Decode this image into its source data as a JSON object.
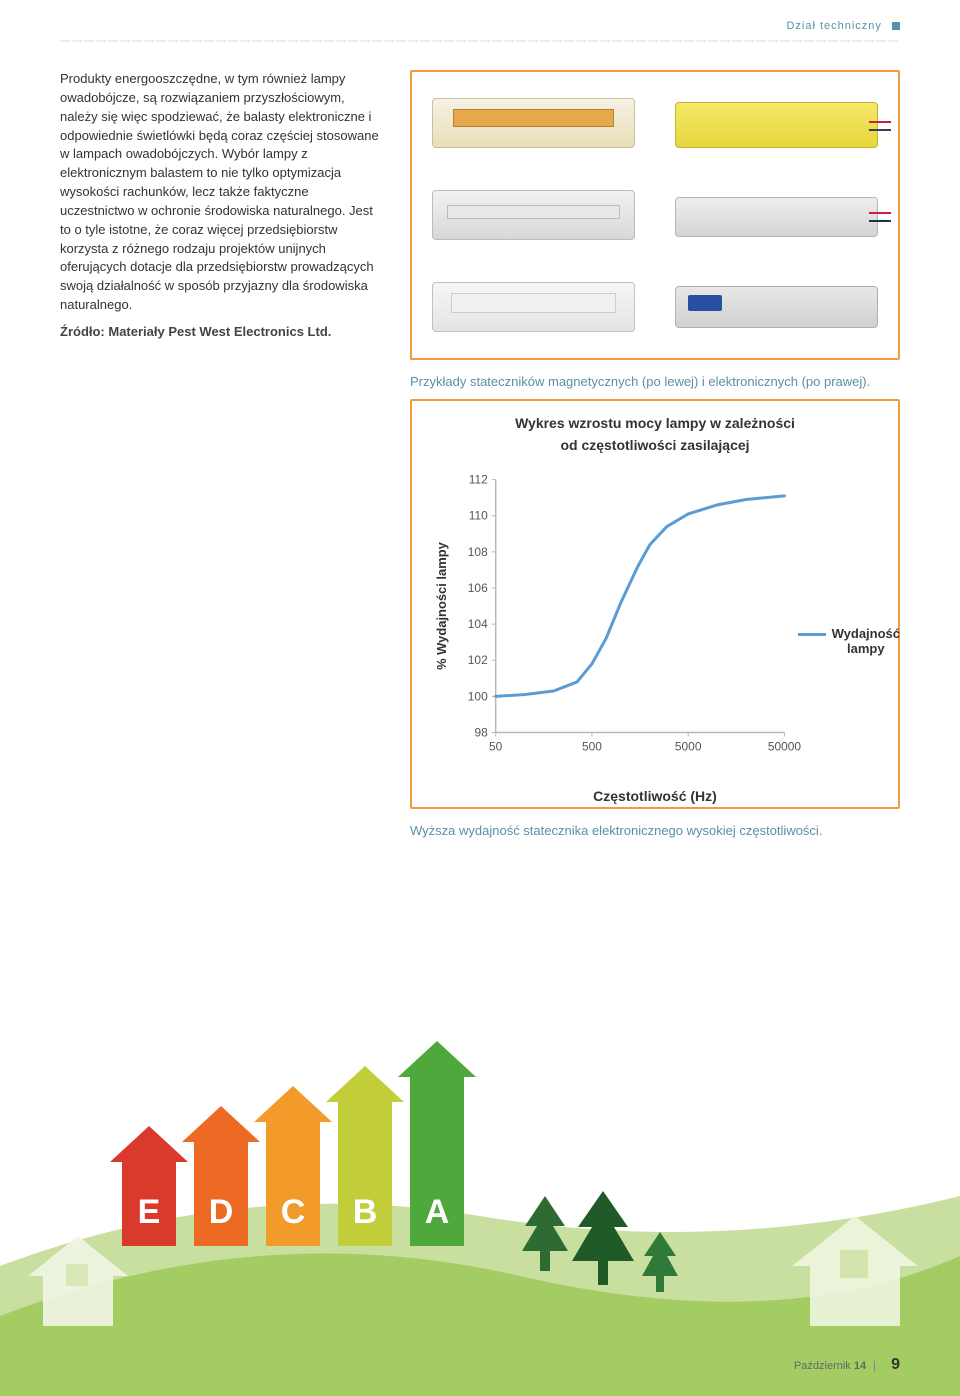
{
  "header": {
    "section": "Dział techniczny"
  },
  "text": {
    "para": "Produkty energooszczędne, w tym również lampy owadobójcze, są rozwiązaniem przyszłościowym, należy się więc spodziewać, że balasty elektroniczne i odpowiednie świetlówki będą coraz częściej stosowane w lampach owadobójczych. Wybór lampy z elektronicznym balastem to nie tylko optymizacja wysokości rachunków, lecz także faktyczne uczestnictwo w ochronie środowiska naturalnego. Jest to o tyle istotne, że coraz więcej przedsiębiorstw korzysta z różnego rodzaju projektów unijnych oferujących dotacje dla przedsiębiorstw prowadzących swoją działalność w sposób przyjazny dla środowiska naturalnego.",
    "source": "Źródło: Materiały Pest West Electronics Ltd."
  },
  "fig1": {
    "caption": "Przykłady stateczników magnetycznych (po lewej) i elektronicznych (po prawej).",
    "border_color": "#f29b3e"
  },
  "chart": {
    "type": "line",
    "title1": "Wykres wzrostu mocy lampy w zależności",
    "title2": "od częstotliwości zasilającej",
    "ylabel": "% Wydajności lampy",
    "xlabel": "Częstotliwość    (Hz)",
    "legend": "Wydajność lampy",
    "xscale": "log",
    "xlim": [
      50,
      50000
    ],
    "ylim": [
      98,
      112
    ],
    "yticks": [
      98,
      100,
      102,
      104,
      106,
      108,
      110,
      112
    ],
    "xticks": [
      50,
      500,
      5000,
      50000
    ],
    "line_color": "#5a9bd4",
    "axis_color": "#b8b8b8",
    "data": [
      {
        "x": 50,
        "y": 100
      },
      {
        "x": 100,
        "y": 100.1
      },
      {
        "x": 200,
        "y": 100.3
      },
      {
        "x": 350,
        "y": 100.8
      },
      {
        "x": 500,
        "y": 101.8
      },
      {
        "x": 700,
        "y": 103.2
      },
      {
        "x": 1000,
        "y": 105.2
      },
      {
        "x": 1500,
        "y": 107.2
      },
      {
        "x": 2000,
        "y": 108.4
      },
      {
        "x": 3000,
        "y": 109.4
      },
      {
        "x": 5000,
        "y": 110.1
      },
      {
        "x": 10000,
        "y": 110.6
      },
      {
        "x": 20000,
        "y": 110.9
      },
      {
        "x": 50000,
        "y": 111.1
      }
    ],
    "border_color": "#f29b3e"
  },
  "fig2_caption": "Wyższa wydajność statecznika elektronicznego wysokiej częstotliwości.",
  "energy": {
    "labels": [
      "E",
      "D",
      "C",
      "B",
      "A"
    ],
    "colors": [
      "#d93a2b",
      "#ec6a23",
      "#f29b2a",
      "#c2cd3a",
      "#4ea83b"
    ],
    "heights": [
      120,
      140,
      160,
      180,
      205
    ]
  },
  "hill_colors": {
    "back": "#c9dfa0",
    "front": "#a3cc63"
  },
  "footer": {
    "month": "Październik",
    "issue": "14",
    "page": "9"
  }
}
